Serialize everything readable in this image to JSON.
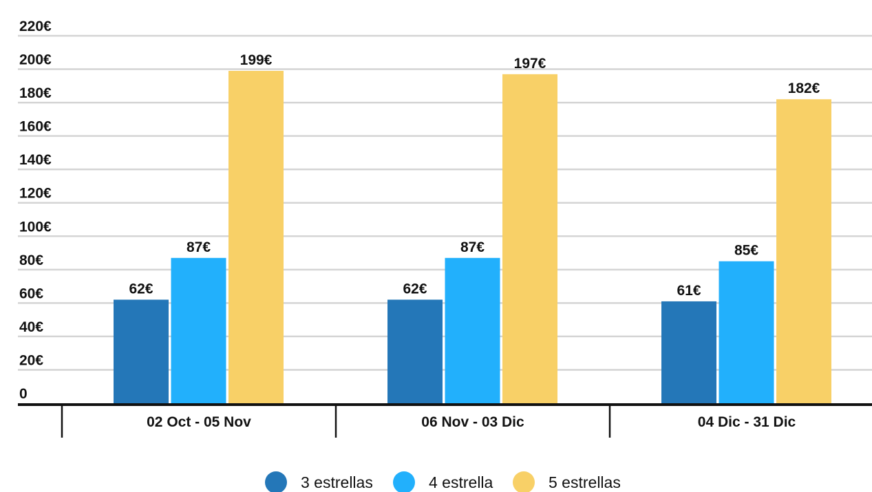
{
  "chart_data": {
    "type": "bar",
    "categories": [
      "02 Oct - 05 Nov",
      "06 Nov - 03 Dic",
      "04 Dic - 31 Dic"
    ],
    "series": [
      {
        "name": "3 estrellas",
        "values": [
          62,
          62,
          61
        ],
        "labels": [
          "62€",
          "62€",
          "61€"
        ],
        "color": "#2477b8"
      },
      {
        "name": "4 estrella",
        "values": [
          87,
          87,
          85
        ],
        "labels": [
          "87€",
          "87€",
          "85€"
        ],
        "color": "#22b0fc"
      },
      {
        "name": "5 estrellas",
        "values": [
          199,
          197,
          182
        ],
        "labels": [
          "199€",
          "197€",
          "182€"
        ],
        "color": "#f8d067"
      }
    ],
    "y_ticks": [
      "0",
      "20€",
      "40€",
      "60€",
      "80€",
      "100€",
      "120€",
      "140€",
      "160€",
      "180€",
      "200€",
      "220€"
    ],
    "ylim": [
      0,
      220
    ],
    "grid": true,
    "legend_position": "bottom-center",
    "title": "",
    "xlabel": "",
    "ylabel": ""
  }
}
